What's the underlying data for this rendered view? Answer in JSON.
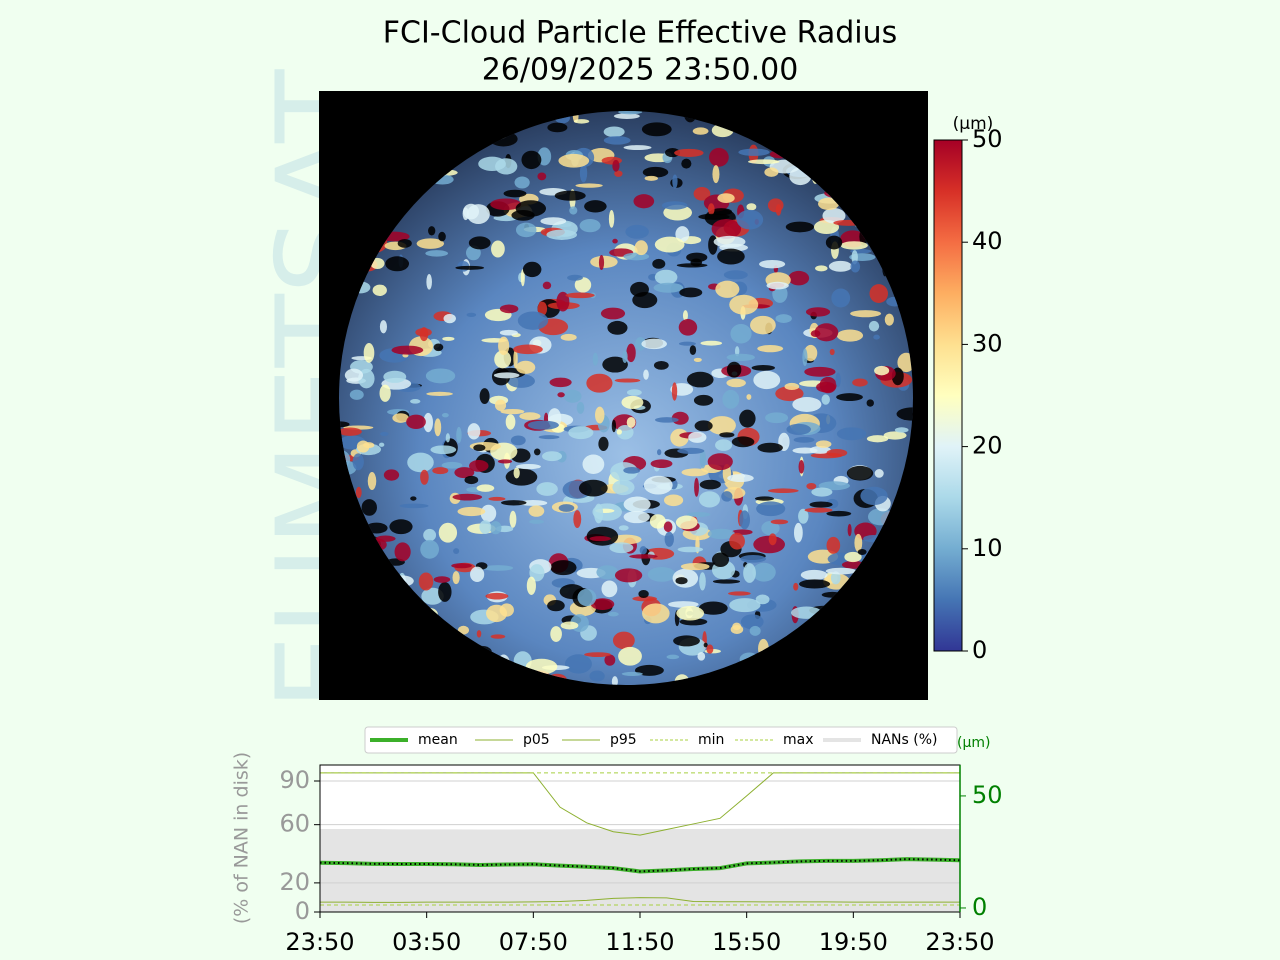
{
  "watermark": "EUMETSAT",
  "image": {
    "title": "FCI-Cloud Particle Effective Radius",
    "subtitle": "26/09/2025 23:50.00"
  },
  "colorbar": {
    "label": "(µm)",
    "lim": [
      0,
      50
    ],
    "ticks": [
      0,
      10,
      20,
      30,
      40,
      50
    ]
  },
  "chart_data": {
    "type": "line",
    "ylabel": "(% of NAN in disk)",
    "y2label": "(µm)",
    "x": [
      0,
      1,
      2,
      3,
      4,
      5,
      6,
      7,
      8,
      9,
      10,
      11,
      12,
      13,
      14,
      15,
      16,
      17,
      18,
      19,
      20,
      21,
      22,
      23,
      24
    ],
    "xlim": [
      0,
      24
    ],
    "xticks": [
      {
        "value": 0,
        "label": "23:50"
      },
      {
        "value": 4,
        "label": "03:50"
      },
      {
        "value": 8,
        "label": "07:50"
      },
      {
        "value": 12,
        "label": "11:50"
      },
      {
        "value": 16,
        "label": "15:50"
      },
      {
        "value": 20,
        "label": "19:50"
      },
      {
        "value": 24,
        "label": "23:50"
      }
    ],
    "ylim": [
      0,
      101
    ],
    "yticks": [
      0,
      20,
      60,
      90
    ],
    "y2lim": [
      -1.8,
      63.8
    ],
    "y2ticks": [
      0,
      50
    ],
    "grid": true,
    "series": [
      {
        "name": "mean",
        "color": "#3cb02a",
        "axis": "y2",
        "values": [
          20.2,
          20.0,
          19.7,
          19.6,
          19.6,
          19.5,
          19.2,
          19.4,
          19.5,
          18.9,
          18.4,
          17.8,
          16.3,
          16.8,
          17.4,
          17.8,
          19.9,
          20.3,
          20.8,
          21.0,
          21.0,
          21.3,
          21.8,
          21.6,
          21.3
        ]
      },
      {
        "name": "p05",
        "color": "#8db030",
        "axis": "y2",
        "values": [
          2.6,
          2.6,
          2.5,
          2.5,
          2.6,
          2.6,
          2.6,
          2.6,
          2.7,
          2.9,
          3.4,
          4.3,
          4.6,
          4.5,
          2.9,
          2.8,
          2.8,
          2.7,
          2.7,
          2.7,
          2.6,
          2.6,
          2.6,
          2.6,
          2.6
        ]
      },
      {
        "name": "p95",
        "color": "#8db030",
        "axis": "y2",
        "values": [
          60.3,
          60.3,
          60.3,
          60.3,
          60.3,
          60.3,
          60.3,
          60.3,
          60.3,
          45,
          38,
          34,
          32.5,
          35,
          37.5,
          40,
          50,
          60.3,
          60.3,
          60.3,
          60.3,
          60.3,
          60.3,
          60.3,
          60.3
        ]
      },
      {
        "name": "min",
        "color": "#a8d040",
        "axis": "y2",
        "dashed": true,
        "values": [
          1.3,
          1.3,
          1.3,
          1.3,
          1.3,
          1.3,
          1.3,
          1.3,
          1.3,
          1.3,
          1.3,
          1.3,
          1.3,
          1.3,
          1.3,
          1.3,
          1.3,
          1.3,
          1.3,
          1.3,
          1.3,
          1.3,
          1.3,
          1.3,
          1.3
        ]
      },
      {
        "name": "max",
        "color": "#a8d040",
        "axis": "y2",
        "dashed": true,
        "values": [
          60.3,
          60.3,
          60.3,
          60.3,
          60.3,
          60.3,
          60.3,
          60.3,
          60.3,
          60.3,
          60.3,
          60.3,
          60.3,
          60.3,
          60.3,
          60.3,
          60.3,
          60.3,
          60.3,
          60.3,
          60.3,
          60.3,
          60.3,
          60.3,
          60.3
        ]
      },
      {
        "name": "NANs (%)",
        "color": "#e4e4e4",
        "area": true,
        "values": [
          57,
          57,
          57,
          56.8,
          56.8,
          56.8,
          56.7,
          56.7,
          56.8,
          56.8,
          56.9,
          57,
          57,
          57,
          57,
          57.1,
          57.2,
          57.2,
          57.3,
          57.3,
          57.3,
          57.2,
          57.2,
          57.1,
          57
        ]
      }
    ]
  }
}
